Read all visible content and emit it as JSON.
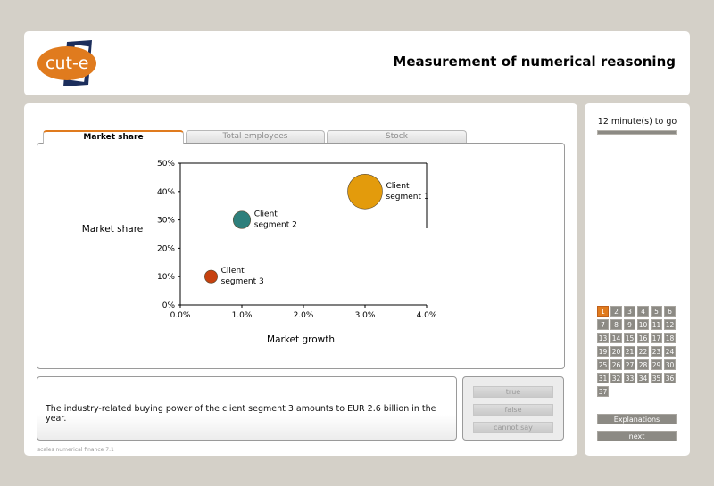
{
  "header": {
    "title": "Measurement of numerical reasoning",
    "logo_text": "cut-e"
  },
  "tabs": [
    {
      "label": "Market share",
      "active": true
    },
    {
      "label": "Total employees",
      "active": false
    },
    {
      "label": "Stock",
      "active": false
    }
  ],
  "chart_data": {
    "type": "scatter",
    "xlabel": "Market growth",
    "ylabel": "Market share",
    "xlim": [
      0,
      4
    ],
    "ylim": [
      0,
      50
    ],
    "x_ticks": [
      "0.0%",
      "1.0%",
      "2.0%",
      "3.0%",
      "4.0%"
    ],
    "y_ticks": [
      "0%",
      "10%",
      "20%",
      "30%",
      "40%",
      "50%"
    ],
    "points": [
      {
        "label_line1": "Client",
        "label_line2": "segment 1",
        "x": 3.0,
        "y": 40,
        "size": 3.0,
        "color": "#e39b0c"
      },
      {
        "label_line1": "Client",
        "label_line2": "segment 2",
        "x": 1.0,
        "y": 30,
        "size": 1.5,
        "color": "#2e7f7b"
      },
      {
        "label_line1": "Client",
        "label_line2": "segment 3",
        "x": 0.5,
        "y": 10,
        "size": 1.1,
        "color": "#c6410f"
      }
    ],
    "grid": false
  },
  "question": {
    "text": "The industry-related buying power of the client segment 3 amounts to EUR 2.6 billion in the year."
  },
  "answers": {
    "true_label": "true",
    "false_label": "false",
    "cannot_label": "cannot say"
  },
  "version": "scales numerical finance 7.1",
  "sidebar": {
    "timer_text": "12 minute(s) to go",
    "timer_fraction": 1.0,
    "questions": [
      "1",
      "2",
      "3",
      "4",
      "5",
      "6",
      "7",
      "8",
      "9",
      "10",
      "11",
      "12",
      "13",
      "14",
      "15",
      "16",
      "17",
      "18",
      "19",
      "20",
      "21",
      "22",
      "23",
      "24",
      "25",
      "26",
      "27",
      "28",
      "29",
      "30",
      "31",
      "32",
      "33",
      "34",
      "35",
      "36",
      "37"
    ],
    "current_question": "1",
    "explanations_label": "Explanations",
    "next_label": "next"
  },
  "colors": {
    "accent": "#e07b1e",
    "logo_blue": "#1c2e5c",
    "button_gray": "#8c8a84"
  }
}
